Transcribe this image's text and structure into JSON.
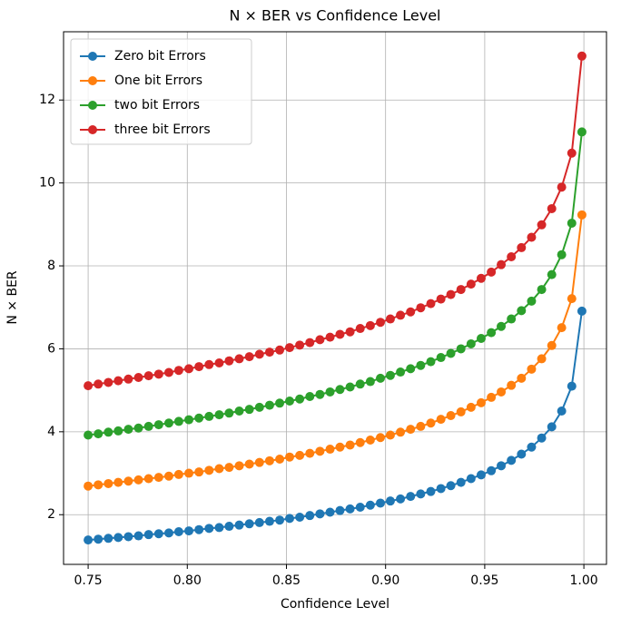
{
  "chart_data": {
    "type": "line",
    "title": "N × BER vs Confidence Level",
    "x_label": "Confidence Level",
    "y_label": "N × BER",
    "x": [
      0.75,
      0.7551,
      0.7602,
      0.7652,
      0.7703,
      0.7754,
      0.7805,
      0.7856,
      0.7907,
      0.7957,
      0.8008,
      0.8059,
      0.811,
      0.8161,
      0.8211,
      0.8262,
      0.8313,
      0.8364,
      0.8415,
      0.8466,
      0.8516,
      0.8567,
      0.8618,
      0.8669,
      0.872,
      0.877,
      0.8821,
      0.8872,
      0.8923,
      0.8974,
      0.9024,
      0.9075,
      0.9126,
      0.9177,
      0.9228,
      0.9279,
      0.9329,
      0.938,
      0.9431,
      0.9482,
      0.9533,
      0.9583,
      0.9634,
      0.9685,
      0.9736,
      0.9787,
      0.9838,
      0.9888,
      0.9939,
      0.999
    ],
    "series": [
      {
        "name": "Zero bit Errors",
        "color": "#1f77b4",
        "values": [
          1.39,
          1.41,
          1.43,
          1.45,
          1.47,
          1.49,
          1.52,
          1.54,
          1.56,
          1.59,
          1.61,
          1.64,
          1.67,
          1.69,
          1.72,
          1.75,
          1.78,
          1.81,
          1.84,
          1.87,
          1.91,
          1.94,
          1.98,
          2.02,
          2.06,
          2.1,
          2.14,
          2.18,
          2.23,
          2.28,
          2.33,
          2.38,
          2.44,
          2.5,
          2.56,
          2.63,
          2.7,
          2.78,
          2.87,
          2.96,
          3.06,
          3.18,
          3.31,
          3.46,
          3.63,
          3.85,
          4.12,
          4.5,
          5.1,
          6.91
        ]
      },
      {
        "name": "One bit Errors",
        "color": "#ff7f0e",
        "values": [
          2.69,
          2.72,
          2.75,
          2.78,
          2.81,
          2.84,
          2.87,
          2.9,
          2.93,
          2.97,
          3.0,
          3.03,
          3.07,
          3.11,
          3.14,
          3.18,
          3.22,
          3.26,
          3.3,
          3.34,
          3.39,
          3.43,
          3.48,
          3.53,
          3.58,
          3.63,
          3.68,
          3.74,
          3.8,
          3.86,
          3.92,
          3.99,
          4.06,
          4.13,
          4.21,
          4.3,
          4.39,
          4.48,
          4.59,
          4.7,
          4.83,
          4.96,
          5.12,
          5.29,
          5.51,
          5.76,
          6.08,
          6.51,
          7.21,
          9.23
        ]
      },
      {
        "name": "two bit Errors",
        "color": "#2ca02c",
        "values": [
          3.92,
          3.95,
          3.99,
          4.02,
          4.06,
          4.09,
          4.13,
          4.17,
          4.21,
          4.25,
          4.29,
          4.33,
          4.37,
          4.41,
          4.45,
          4.5,
          4.54,
          4.59,
          4.64,
          4.69,
          4.74,
          4.79,
          4.85,
          4.9,
          4.96,
          5.02,
          5.08,
          5.15,
          5.21,
          5.29,
          5.36,
          5.44,
          5.52,
          5.6,
          5.69,
          5.79,
          5.89,
          6.0,
          6.12,
          6.25,
          6.39,
          6.54,
          6.72,
          6.92,
          7.15,
          7.43,
          7.79,
          8.27,
          9.03,
          11.23
        ]
      },
      {
        "name": "three bit Errors",
        "color": "#d62728",
        "values": [
          5.11,
          5.15,
          5.19,
          5.23,
          5.27,
          5.31,
          5.35,
          5.39,
          5.43,
          5.48,
          5.52,
          5.57,
          5.62,
          5.66,
          5.71,
          5.76,
          5.81,
          5.87,
          5.92,
          5.97,
          6.03,
          6.09,
          6.15,
          6.22,
          6.28,
          6.35,
          6.41,
          6.49,
          6.56,
          6.64,
          6.72,
          6.81,
          6.89,
          6.99,
          7.09,
          7.2,
          7.31,
          7.43,
          7.56,
          7.7,
          7.85,
          8.03,
          8.22,
          8.44,
          8.69,
          8.99,
          9.38,
          9.9,
          10.72,
          13.06
        ]
      }
    ],
    "xlim": [
      0.7376,
      1.0114
    ],
    "ylim": [
      0.802,
      13.646
    ],
    "xticks": [
      0.75,
      {
        "value": 0.8,
        "label": "0.80"
      },
      0.85,
      {
        "value": 0.9,
        "label": "0.90"
      },
      0.95,
      {
        "value": 1.0,
        "label": "1.00"
      }
    ],
    "yticks": [
      2,
      4,
      6,
      8,
      10,
      12
    ],
    "grid": true,
    "legend_position": "upper-left"
  }
}
